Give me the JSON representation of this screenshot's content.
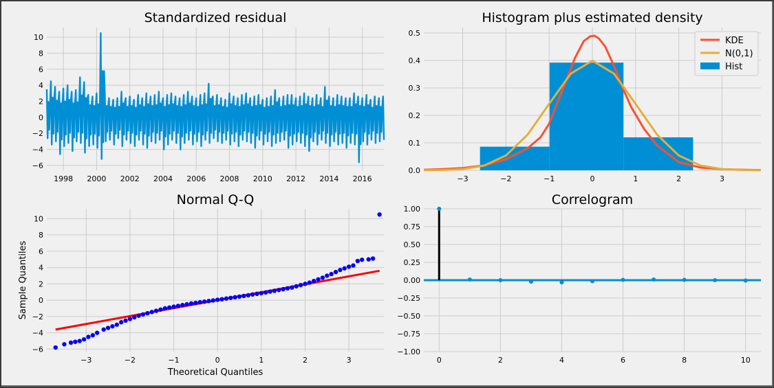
{
  "colors": {
    "figure_bg": "#f0f0f0",
    "grid": "#cbcbcb",
    "series_blue": "#008fd5",
    "kde": "#fc4f30",
    "normal": "#e5ae38",
    "qq_points": "#0000ff",
    "qq_line": "#ff0000",
    "acf_stem": "#000000",
    "text": "#000000"
  },
  "chart_data": [
    {
      "id": "residual",
      "type": "line",
      "title": "Standardized residual",
      "xlabel": "",
      "ylabel": "",
      "xlim": [
        1997.0,
        2017.3
      ],
      "ylim": [
        -6.6,
        11.2
      ],
      "xticks": [
        1998,
        2000,
        2002,
        2004,
        2006,
        2008,
        2010,
        2012,
        2014,
        2016
      ],
      "xtick_labels": [
        "1998",
        "2000",
        "2002",
        "2004",
        "2006",
        "2008",
        "2010",
        "2012",
        "2014",
        "2016"
      ],
      "yticks": [
        -6,
        -4,
        -2,
        0,
        2,
        4,
        6,
        8,
        10
      ],
      "ytick_labels": [
        "−6",
        "−4",
        "−2",
        "0",
        "2",
        "4",
        "6",
        "8",
        "10"
      ],
      "grid": true,
      "series": [
        {
          "x": [
            1997.0,
            1997.25,
            1997.5,
            1997.75,
            1998.0,
            1998.25,
            1998.5,
            1998.75,
            1999.0,
            1999.25,
            1999.5,
            1999.75,
            2000.0,
            2000.25,
            2000.5,
            2000.75,
            2001.0,
            2001.25,
            2001.5,
            2001.75,
            2002.0,
            2002.25,
            2002.5,
            2002.75,
            2003.0,
            2003.25,
            2003.5,
            2003.75,
            2004.0,
            2004.25,
            2004.5,
            2004.75,
            2005.0,
            2005.25,
            2005.5,
            2005.75,
            2006.0,
            2006.25,
            2006.5,
            2006.75,
            2007.0,
            2007.25,
            2007.5,
            2007.75,
            2008.0,
            2008.25,
            2008.5,
            2008.75,
            2009.0,
            2009.25,
            2009.5,
            2009.75,
            2010.0,
            2010.25,
            2010.5,
            2010.75,
            2011.0,
            2011.25,
            2011.5,
            2011.75,
            2012.0,
            2012.25,
            2012.5,
            2012.75,
            2013.0,
            2013.25,
            2013.5,
            2013.75,
            2014.0,
            2014.25,
            2014.5,
            2014.75,
            2015.0,
            2015.25,
            2015.5,
            2015.75,
            2016.0,
            2016.25,
            2016.5,
            2016.75,
            2017.0,
            2017.25
          ],
          "y_high": [
            3.5,
            4.5,
            3.8,
            3.2,
            3.6,
            4.0,
            3.2,
            3.4,
            5.0,
            4.4,
            2.8,
            2.6,
            3.0,
            10.5,
            2.6,
            2.4,
            2.2,
            2.4,
            3.2,
            2.4,
            2.6,
            2.2,
            2.8,
            2.4,
            3.0,
            2.6,
            2.8,
            3.2,
            2.4,
            2.8,
            3.0,
            2.6,
            2.4,
            2.8,
            3.2,
            2.6,
            2.4,
            2.8,
            3.0,
            4.2,
            2.6,
            2.8,
            2.4,
            2.2,
            3.0,
            2.6,
            2.4,
            2.8,
            3.0,
            2.4,
            2.6,
            2.8,
            2.2,
            2.4,
            2.6,
            3.4,
            2.4,
            2.6,
            2.8,
            2.8,
            2.4,
            2.6,
            3.0,
            2.6,
            2.4,
            2.8,
            2.4,
            3.8,
            2.6,
            2.4,
            2.8,
            2.6,
            2.4,
            2.4,
            3.0,
            2.6,
            2.4,
            2.8,
            2.2,
            2.6,
            2.4,
            2.6
          ],
          "y_low": [
            -2.6,
            -3.4,
            -3.0,
            -4.6,
            -3.6,
            -3.2,
            -4.2,
            -3.0,
            -3.2,
            -4.4,
            -3.6,
            -3.4,
            -3.8,
            -5.2,
            -3.0,
            -2.8,
            -3.4,
            -2.6,
            -3.6,
            -2.8,
            -3.2,
            -3.6,
            -2.8,
            -3.4,
            -3.8,
            -3.0,
            -3.2,
            -2.8,
            -4.0,
            -3.4,
            -2.8,
            -3.2,
            -4.0,
            -3.2,
            -2.8,
            -3.4,
            -3.0,
            -3.6,
            -2.8,
            -3.2,
            -2.6,
            -3.0,
            -3.2,
            -2.8,
            -3.4,
            -3.0,
            -3.6,
            -2.8,
            -3.0,
            -3.2,
            -3.8,
            -2.8,
            -3.4,
            -3.0,
            -3.6,
            -3.2,
            -3.0,
            -2.8,
            -3.8,
            -3.4,
            -3.0,
            -3.2,
            -3.6,
            -4.2,
            -3.0,
            -3.4,
            -2.8,
            -3.2,
            -3.6,
            -3.0,
            -3.4,
            -3.2,
            -3.8,
            -3.2,
            -3.4,
            -5.6,
            -3.0,
            -3.4,
            -2.8,
            -3.2,
            -3.0,
            -2.8
          ]
        }
      ]
    },
    {
      "id": "histogram",
      "type": "bar",
      "title": "Histogram plus estimated density",
      "xlabel": "",
      "ylabel": "",
      "xlim": [
        -3.9,
        3.9
      ],
      "ylim": [
        0,
        0.52
      ],
      "xticks": [
        -3,
        -2,
        -1,
        0,
        1,
        2,
        3
      ],
      "xtick_labels": [
        "−3",
        "−2",
        "−1",
        "0",
        "1",
        "2",
        "3"
      ],
      "yticks": [
        0,
        0.1,
        0.2,
        0.3,
        0.4,
        0.5
      ],
      "ytick_labels": [
        "0.0",
        "0.1",
        "0.2",
        "0.3",
        "0.4",
        "0.5"
      ],
      "grid": true,
      "legend_position": "top-right",
      "legend": [
        "KDE",
        "N(0,1)",
        "Hist"
      ],
      "bins": [
        {
          "x0": -2.6,
          "x1": -0.99,
          "height": 0.086
        },
        {
          "x0": -0.99,
          "x1": 0.72,
          "height": 0.392
        },
        {
          "x0": 0.72,
          "x1": 2.33,
          "height": 0.12
        }
      ],
      "kde": {
        "x": [
          -3.9,
          -3.5,
          -3.0,
          -2.5,
          -2.0,
          -1.5,
          -1.2,
          -1.0,
          -0.8,
          -0.6,
          -0.4,
          -0.2,
          -0.05,
          0.05,
          0.15,
          0.3,
          0.5,
          0.7,
          0.9,
          1.2,
          1.5,
          2.0,
          2.5,
          3.0,
          3.5,
          3.9
        ],
        "y": [
          0.002,
          0.004,
          0.008,
          0.018,
          0.04,
          0.08,
          0.12,
          0.17,
          0.25,
          0.33,
          0.41,
          0.47,
          0.488,
          0.49,
          0.48,
          0.45,
          0.38,
          0.3,
          0.23,
          0.15,
          0.09,
          0.03,
          0.01,
          0.004,
          0.002,
          0.001
        ]
      },
      "normal": {
        "x": [
          -3.9,
          -3.5,
          -3.0,
          -2.5,
          -2.0,
          -1.5,
          -1.0,
          -0.5,
          0,
          0.5,
          1.0,
          1.5,
          2.0,
          2.5,
          3.0,
          3.5,
          3.9
        ],
        "y": [
          0.0002,
          0.0009,
          0.0044,
          0.0175,
          0.054,
          0.1295,
          0.242,
          0.352,
          0.399,
          0.352,
          0.242,
          0.1295,
          0.054,
          0.0175,
          0.0044,
          0.0009,
          0.0002
        ]
      }
    },
    {
      "id": "qq",
      "type": "scatter",
      "title": "Normal Q-Q",
      "xlabel": "Theoretical Quantiles",
      "ylabel": "Sample Quantiles",
      "xlim": [
        -3.9,
        3.8
      ],
      "ylim": [
        -6.3,
        11.2
      ],
      "xticks": [
        -3,
        -2,
        -1,
        0,
        1,
        2,
        3
      ],
      "xtick_labels": [
        "−3",
        "−2",
        "−1",
        "0",
        "1",
        "2",
        "3"
      ],
      "yticks": [
        -6,
        -4,
        -2,
        0,
        2,
        4,
        6,
        8,
        10
      ],
      "ytick_labels": [
        "−6",
        "−4",
        "−2",
        "0",
        "2",
        "4",
        "6",
        "8",
        "10"
      ],
      "grid": true,
      "points": {
        "x": [
          -3.7,
          -3.5,
          -3.35,
          -3.25,
          -3.15,
          -3.05,
          -2.95,
          -2.85,
          -2.75,
          -2.6,
          -2.5,
          -2.4,
          -2.3,
          -2.2,
          -2.1,
          -2.0,
          -1.9,
          -1.8,
          -1.7,
          -1.6,
          -1.5,
          -1.4,
          -1.3,
          -1.2,
          -1.1,
          -1.0,
          -0.9,
          -0.8,
          -0.7,
          -0.6,
          -0.5,
          -0.4,
          -0.3,
          -0.2,
          -0.1,
          0,
          0.1,
          0.2,
          0.3,
          0.4,
          0.5,
          0.6,
          0.7,
          0.8,
          0.9,
          1.0,
          1.1,
          1.2,
          1.3,
          1.4,
          1.5,
          1.6,
          1.7,
          1.8,
          1.9,
          2.0,
          2.1,
          2.2,
          2.3,
          2.4,
          2.5,
          2.6,
          2.7,
          2.8,
          2.9,
          3.0,
          3.1,
          3.2,
          3.3,
          3.45,
          3.55,
          3.7
        ],
        "y": [
          -5.8,
          -5.4,
          -5.2,
          -5.1,
          -5.0,
          -4.8,
          -4.5,
          -4.3,
          -4.0,
          -3.6,
          -3.4,
          -3.2,
          -3.0,
          -2.7,
          -2.5,
          -2.3,
          -2.1,
          -1.9,
          -1.75,
          -1.6,
          -1.45,
          -1.3,
          -1.15,
          -1.0,
          -0.9,
          -0.8,
          -0.7,
          -0.6,
          -0.5,
          -0.4,
          -0.33,
          -0.25,
          -0.18,
          -0.1,
          -0.03,
          0.05,
          0.12,
          0.2,
          0.28,
          0.36,
          0.44,
          0.52,
          0.6,
          0.7,
          0.78,
          0.86,
          0.95,
          1.05,
          1.15,
          1.25,
          1.35,
          1.45,
          1.55,
          1.7,
          1.85,
          2.0,
          2.15,
          2.35,
          2.55,
          2.75,
          3.0,
          3.2,
          3.45,
          3.7,
          3.9,
          4.1,
          4.25,
          4.8,
          4.95,
          5.0,
          5.1,
          10.5
        ]
      },
      "fit_line": {
        "x": [
          -3.7,
          3.7
        ],
        "y": [
          -3.6,
          3.6
        ]
      }
    },
    {
      "id": "correlogram",
      "type": "scatter",
      "title": "Correlogram",
      "xlabel": "",
      "ylabel": "",
      "xlim": [
        -0.5,
        10.5
      ],
      "ylim": [
        -1.0,
        1.0
      ],
      "xticks": [
        0,
        2,
        4,
        6,
        8,
        10
      ],
      "xtick_labels": [
        "0",
        "2",
        "4",
        "6",
        "8",
        "10"
      ],
      "yticks": [
        -1.0,
        -0.75,
        -0.5,
        -0.25,
        0,
        0.25,
        0.5,
        0.75,
        1.0
      ],
      "ytick_labels": [
        "−1.00",
        "−0.75",
        "−0.50",
        "−0.25",
        "0.00",
        "0.25",
        "0.50",
        "0.75",
        "1.00"
      ],
      "grid": true,
      "lags": [
        0,
        1,
        2,
        3,
        4,
        5,
        6,
        7,
        8,
        9,
        10
      ],
      "values": [
        1.0,
        0.01,
        0.0,
        -0.02,
        -0.03,
        -0.015,
        0.005,
        0.01,
        0.005,
        0.0,
        -0.005
      ]
    }
  ]
}
